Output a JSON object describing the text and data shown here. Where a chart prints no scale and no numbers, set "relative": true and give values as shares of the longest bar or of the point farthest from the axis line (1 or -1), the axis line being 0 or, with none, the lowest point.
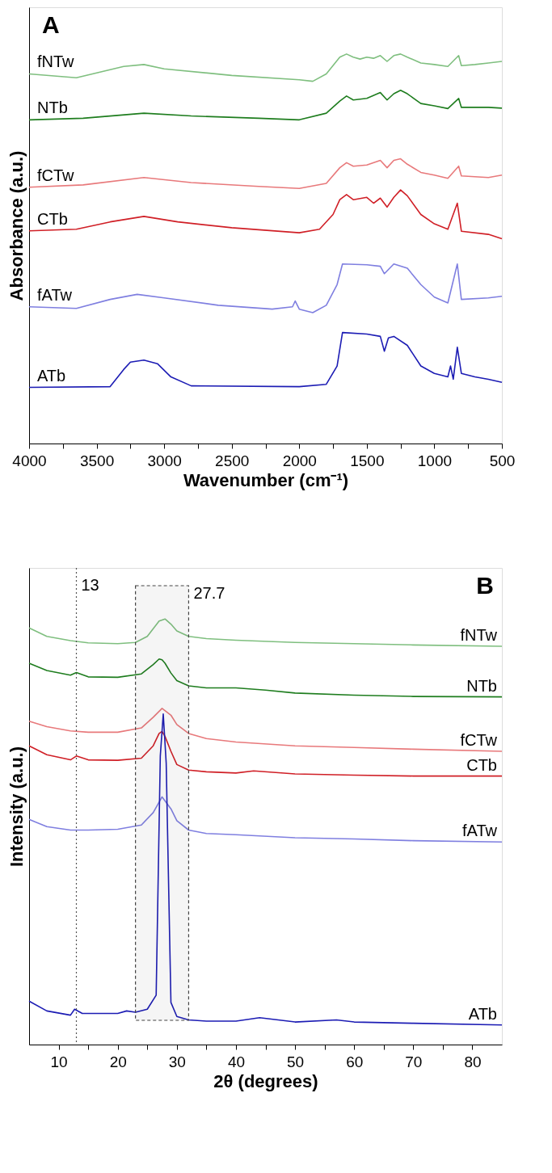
{
  "chart_data": [
    {
      "type": "line",
      "relative": true,
      "xlabel": "Wavenumber (cm⁻¹)",
      "ylabel": "Absorbance (a.u.)",
      "annotations": [
        "A"
      ],
      "xlim": [
        4000,
        500
      ],
      "xticks": [
        4000,
        {
          "value": 3750,
          "label": null
        },
        3500,
        {
          "value": 3250,
          "label": null
        },
        3000,
        {
          "value": 2750,
          "label": null
        },
        2500,
        {
          "value": 2250,
          "label": null
        },
        2000,
        {
          "value": 1750,
          "label": null
        },
        1500,
        {
          "value": 1250,
          "label": null
        },
        1000,
        {
          "value": 750,
          "label": null
        },
        500
      ],
      "tick_labels": "x",
      "grid": false,
      "legend": false,
      "line_style": "solid",
      "marker": "none",
      "series": [
        {
          "name": "fNTw",
          "color": "#7fbf7f",
          "x": [
            4000,
            3650,
            3300,
            3150,
            3000,
            2500,
            2000,
            1900,
            1800,
            1700,
            1650,
            1600,
            1550,
            1500,
            1450,
            1400,
            1350,
            1300,
            1250,
            1200,
            1100,
            1000,
            900,
            820,
            800,
            700,
            600,
            500
          ],
          "values": [
            0.949,
            0.939,
            0.968,
            0.973,
            0.962,
            0.945,
            0.934,
            0.93,
            0.949,
            0.992,
            1.0,
            0.992,
            0.987,
            0.992,
            0.989,
            0.996,
            0.981,
            0.996,
            1.0,
            0.992,
            0.977,
            0.973,
            0.968,
            0.996,
            0.97,
            0.973,
            0.977,
            0.981
          ]
        },
        {
          "name": "NTb",
          "color": "#1e7d1e",
          "x": [
            4000,
            3600,
            3150,
            2800,
            2300,
            2000,
            1800,
            1700,
            1650,
            1600,
            1500,
            1400,
            1350,
            1300,
            1250,
            1200,
            1100,
            1000,
            900,
            820,
            800,
            600,
            500
          ],
          "values": [
            0.831,
            0.835,
            0.848,
            0.841,
            0.835,
            0.831,
            0.848,
            0.879,
            0.892,
            0.882,
            0.886,
            0.901,
            0.882,
            0.898,
            0.907,
            0.898,
            0.873,
            0.867,
            0.86,
            0.886,
            0.863,
            0.863,
            0.861
          ]
        },
        {
          "name": "fCTw",
          "color": "#e8797b",
          "x": [
            4000,
            3600,
            3150,
            2800,
            2300,
            2000,
            1800,
            1700,
            1650,
            1600,
            1500,
            1400,
            1350,
            1300,
            1250,
            1200,
            1100,
            1000,
            900,
            820,
            800,
            600,
            500
          ],
          "values": [
            0.658,
            0.664,
            0.683,
            0.67,
            0.66,
            0.655,
            0.668,
            0.708,
            0.721,
            0.712,
            0.715,
            0.727,
            0.708,
            0.727,
            0.731,
            0.717,
            0.696,
            0.689,
            0.681,
            0.712,
            0.687,
            0.683,
            0.689
          ]
        },
        {
          "name": "CTb",
          "color": "#d01f26",
          "x": [
            4000,
            3650,
            3400,
            3150,
            2900,
            2500,
            2000,
            1850,
            1750,
            1700,
            1650,
            1600,
            1500,
            1450,
            1400,
            1350,
            1300,
            1250,
            1200,
            1100,
            1000,
            900,
            830,
            800,
            600,
            500
          ],
          "values": [
            0.546,
            0.55,
            0.569,
            0.583,
            0.569,
            0.554,
            0.541,
            0.55,
            0.588,
            0.626,
            0.639,
            0.626,
            0.632,
            0.617,
            0.63,
            0.607,
            0.632,
            0.651,
            0.636,
            0.588,
            0.564,
            0.55,
            0.617,
            0.545,
            0.537,
            0.526
          ]
        },
        {
          "name": "fATw",
          "color": "#7f7fe0",
          "x": [
            4000,
            3650,
            3400,
            3200,
            3000,
            2600,
            2200,
            2050,
            2030,
            2000,
            1900,
            1800,
            1720,
            1680,
            1500,
            1400,
            1370,
            1300,
            1200,
            1100,
            1000,
            900,
            830,
            800,
            600,
            500
          ],
          "values": [
            0.351,
            0.347,
            0.37,
            0.383,
            0.374,
            0.355,
            0.345,
            0.351,
            0.366,
            0.345,
            0.336,
            0.355,
            0.408,
            0.461,
            0.459,
            0.455,
            0.436,
            0.461,
            0.45,
            0.408,
            0.376,
            0.361,
            0.461,
            0.37,
            0.374,
            0.378
          ]
        },
        {
          "name": "ATb",
          "color": "#1c1cb4",
          "x": [
            4000,
            3400,
            3300,
            3250,
            3150,
            3050,
            2950,
            2800,
            2000,
            1800,
            1720,
            1680,
            1500,
            1400,
            1370,
            1340,
            1300,
            1200,
            1100,
            1000,
            900,
            880,
            860,
            830,
            800,
            700,
            600,
            500
          ],
          "values": [
            0.144,
            0.146,
            0.19,
            0.209,
            0.214,
            0.205,
            0.171,
            0.148,
            0.146,
            0.152,
            0.199,
            0.285,
            0.281,
            0.275,
            0.237,
            0.271,
            0.275,
            0.252,
            0.199,
            0.18,
            0.171,
            0.199,
            0.165,
            0.247,
            0.18,
            0.171,
            0.165,
            0.157
          ]
        }
      ]
    },
    {
      "type": "line",
      "relative": true,
      "xlabel": "2θ (degrees)",
      "ylabel": "Intensity (a.u.)",
      "annotations": [
        "B"
      ],
      "xlim": [
        5,
        85
      ],
      "xticks": [
        10,
        {
          "value": 15,
          "label": null
        },
        20,
        {
          "value": 25,
          "label": null
        },
        30,
        {
          "value": 35,
          "label": null
        },
        40,
        {
          "value": 45,
          "label": null
        },
        50,
        {
          "value": 55,
          "label": null
        },
        60,
        {
          "value": 65,
          "label": null
        },
        70,
        {
          "value": 75,
          "label": null
        },
        80
      ],
      "tick_labels": "x",
      "grid": false,
      "legend": false,
      "line_style": "solid",
      "marker": "none",
      "ref_lines": [
        {
          "axis": "x",
          "value": 13,
          "label": "13",
          "line_style": "dotted",
          "color": "#555555"
        }
      ],
      "bands": [
        {
          "axis": "x",
          "from": 23,
          "to": 32,
          "label": "27.7",
          "color": "#444444"
        }
      ],
      "series": [
        {
          "name": "fNTw",
          "color": "#7fbf7f",
          "x": [
            5,
            8,
            12,
            15,
            20,
            23,
            25,
            27,
            28,
            29,
            30,
            32,
            35,
            40,
            50,
            60,
            70,
            85
          ],
          "values": [
            0.979,
            0.959,
            0.949,
            0.944,
            0.942,
            0.945,
            0.959,
            0.995,
            1.0,
            0.988,
            0.972,
            0.959,
            0.954,
            0.95,
            0.945,
            0.942,
            0.939,
            0.936
          ]
        },
        {
          "name": "NTb",
          "color": "#1e7d1e",
          "x": [
            5,
            8,
            12,
            13,
            15,
            20,
            24,
            26,
            27,
            27.5,
            28,
            29,
            30,
            32,
            35,
            40,
            45,
            50,
            60,
            70,
            85
          ],
          "values": [
            0.896,
            0.879,
            0.868,
            0.874,
            0.864,
            0.863,
            0.871,
            0.893,
            0.906,
            0.904,
            0.896,
            0.873,
            0.855,
            0.843,
            0.838,
            0.838,
            0.833,
            0.826,
            0.821,
            0.818,
            0.817
          ]
        },
        {
          "name": "fCTw",
          "color": "#e8797b",
          "x": [
            5,
            8,
            12,
            15,
            20,
            24,
            26,
            27.5,
            29,
            30,
            32,
            35,
            40,
            50,
            60,
            70,
            85
          ],
          "values": [
            0.76,
            0.747,
            0.737,
            0.734,
            0.734,
            0.744,
            0.769,
            0.79,
            0.774,
            0.752,
            0.731,
            0.719,
            0.711,
            0.702,
            0.698,
            0.694,
            0.689
          ]
        },
        {
          "name": "CTb",
          "color": "#d01f26",
          "x": [
            5,
            8,
            12,
            13,
            15,
            20,
            24,
            26,
            27,
            27.5,
            28,
            29,
            30,
            32,
            35,
            40,
            43,
            50,
            60,
            70,
            85
          ],
          "values": [
            0.702,
            0.681,
            0.669,
            0.678,
            0.669,
            0.668,
            0.673,
            0.702,
            0.731,
            0.736,
            0.724,
            0.689,
            0.658,
            0.645,
            0.641,
            0.638,
            0.643,
            0.636,
            0.633,
            0.631,
            0.631
          ]
        },
        {
          "name": "fATw",
          "color": "#7f7fe0",
          "x": [
            5,
            8,
            12,
            15,
            20,
            24,
            26,
            27.5,
            29,
            30,
            32,
            35,
            40,
            50,
            60,
            70,
            85
          ],
          "values": [
            0.529,
            0.512,
            0.504,
            0.504,
            0.506,
            0.516,
            0.545,
            0.582,
            0.554,
            0.526,
            0.504,
            0.496,
            0.493,
            0.486,
            0.483,
            0.479,
            0.476
          ]
        },
        {
          "name": "ATb",
          "color": "#1c1cb4",
          "x": [
            5,
            8,
            12,
            12.7,
            14,
            17,
            20,
            21.5,
            23,
            25,
            26.5,
            27.2,
            27.7,
            28.2,
            29,
            30,
            32,
            35,
            40,
            44,
            50,
            57,
            60,
            70,
            85
          ],
          "values": [
            0.102,
            0.079,
            0.069,
            0.083,
            0.073,
            0.073,
            0.073,
            0.079,
            0.076,
            0.083,
            0.116,
            0.678,
            0.777,
            0.661,
            0.099,
            0.066,
            0.058,
            0.055,
            0.055,
            0.063,
            0.053,
            0.058,
            0.053,
            0.05,
            0.046
          ]
        }
      ]
    }
  ]
}
